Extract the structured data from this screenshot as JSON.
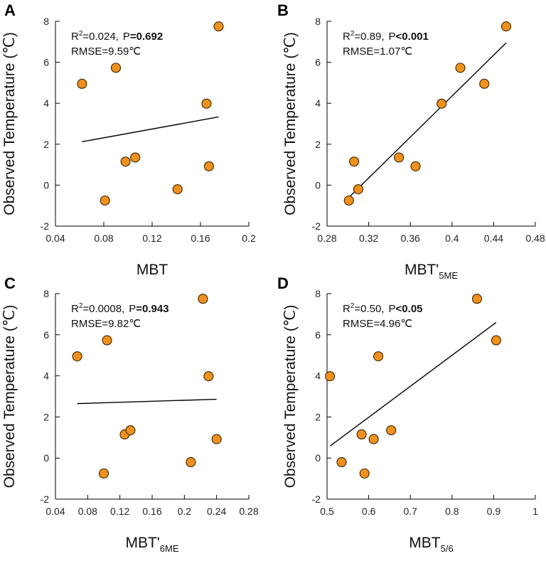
{
  "colors": {
    "marker": "#F0901E",
    "marker_edge": "#3a2600",
    "axis": "#000000",
    "line": "#000000"
  },
  "chart_data": [
    {
      "type": "scatter",
      "panel": "A",
      "ylabel": "Observed Temperature (℃)",
      "xlabel": "MBT",
      "xlabel_sub": "",
      "xlim": [
        0.04,
        0.2
      ],
      "xticks": [
        "0.04",
        "0.08",
        "0.12",
        "0.16",
        "0.2"
      ],
      "ylim": [
        -2,
        8
      ],
      "yticks": [
        "-2",
        "0",
        "2",
        "4",
        "6",
        "8"
      ],
      "stats": {
        "r2_prefix": "R",
        "r2_sup": "2",
        "r2_value": "=0.024,",
        "p_label": "P",
        "p_value": "=0.692",
        "rmse_text": "RMSE=9.59℃"
      },
      "points": [
        {
          "x": 0.062,
          "y": 4.95
        },
        {
          "x": 0.09,
          "y": 5.73
        },
        {
          "x": 0.081,
          "y": -0.75
        },
        {
          "x": 0.098,
          "y": 1.15
        },
        {
          "x": 0.106,
          "y": 1.35
        },
        {
          "x": 0.141,
          "y": -0.2
        },
        {
          "x": 0.165,
          "y": 3.98
        },
        {
          "x": 0.167,
          "y": 0.92
        },
        {
          "x": 0.175,
          "y": 7.75
        }
      ],
      "fit": {
        "x1": 0.062,
        "y1": 2.12,
        "x2": 0.175,
        "y2": 3.33
      }
    },
    {
      "type": "scatter",
      "panel": "B",
      "ylabel": "Observed Temperature (℃)",
      "xlabel": "MBT'",
      "xlabel_sub": "5ME",
      "xlim": [
        0.28,
        0.48
      ],
      "xticks": [
        "0.28",
        "0.32",
        "0.36",
        "0.4",
        "0.44",
        "0.48"
      ],
      "ylim": [
        -2,
        8
      ],
      "yticks": [
        "-2",
        "0",
        "2",
        "4",
        "6",
        "8"
      ],
      "stats": {
        "r2_prefix": "R",
        "r2_sup": "2",
        "r2_value": "=0.89,",
        "p_label": "P",
        "p_value": "<0.001",
        "rmse_text": "RMSE=1.07℃"
      },
      "points": [
        {
          "x": 0.301,
          "y": -0.75
        },
        {
          "x": 0.306,
          "y": 1.15
        },
        {
          "x": 0.31,
          "y": -0.2
        },
        {
          "x": 0.349,
          "y": 1.35
        },
        {
          "x": 0.365,
          "y": 0.92
        },
        {
          "x": 0.39,
          "y": 3.98
        },
        {
          "x": 0.408,
          "y": 5.73
        },
        {
          "x": 0.431,
          "y": 4.95
        },
        {
          "x": 0.452,
          "y": 7.75
        }
      ],
      "fit": {
        "x1": 0.301,
        "y1": -0.6,
        "x2": 0.452,
        "y2": 6.95
      }
    },
    {
      "type": "scatter",
      "panel": "C",
      "ylabel": "Observed Temperature (℃)",
      "xlabel": "MBT'",
      "xlabel_sub": "6ME",
      "xlim": [
        0.04,
        0.28
      ],
      "xticks": [
        "0.04",
        "0.08",
        "0.12",
        "0.16",
        "0.2",
        "0.24",
        "0.28"
      ],
      "ylim": [
        -2,
        8
      ],
      "yticks": [
        "-2",
        "0",
        "2",
        "4",
        "6",
        "8"
      ],
      "stats": {
        "r2_prefix": "R",
        "r2_sup": "2",
        "r2_value": "=0.0008,",
        "p_label": "P",
        "p_value": "=0.943",
        "rmse_text": "RMSE=9.82℃"
      },
      "points": [
        {
          "x": 0.067,
          "y": 4.95
        },
        {
          "x": 0.104,
          "y": 5.73
        },
        {
          "x": 0.1,
          "y": -0.75
        },
        {
          "x": 0.126,
          "y": 1.15
        },
        {
          "x": 0.133,
          "y": 1.35
        },
        {
          "x": 0.208,
          "y": -0.2
        },
        {
          "x": 0.223,
          "y": 7.75
        },
        {
          "x": 0.23,
          "y": 3.98
        },
        {
          "x": 0.24,
          "y": 0.92
        }
      ],
      "fit": {
        "x1": 0.067,
        "y1": 2.65,
        "x2": 0.24,
        "y2": 2.86
      }
    },
    {
      "type": "scatter",
      "panel": "D",
      "ylabel": "Observed Temperature (℃)",
      "xlabel": "MBT",
      "xlabel_sub": "5/6",
      "xlim": [
        0.5,
        1.0
      ],
      "xticks": [
        "0.5",
        "0.6",
        "0.7",
        "0.8",
        "0.9",
        "1"
      ],
      "ylim": [
        -2,
        8
      ],
      "yticks": [
        "-2",
        "0",
        "2",
        "4",
        "6",
        "8"
      ],
      "stats": {
        "r2_prefix": "R",
        "r2_sup": "2",
        "r2_value": "=0.50,",
        "p_label": "P",
        "p_value": "<0.05",
        "rmse_text": "RMSE=4.96℃"
      },
      "points": [
        {
          "x": 0.507,
          "y": 3.98
        },
        {
          "x": 0.535,
          "y": -0.2
        },
        {
          "x": 0.583,
          "y": 1.15
        },
        {
          "x": 0.59,
          "y": -0.75
        },
        {
          "x": 0.612,
          "y": 0.92
        },
        {
          "x": 0.623,
          "y": 4.95
        },
        {
          "x": 0.654,
          "y": 1.35
        },
        {
          "x": 0.86,
          "y": 7.75
        },
        {
          "x": 0.906,
          "y": 5.73
        }
      ],
      "fit": {
        "x1": 0.507,
        "y1": 0.58,
        "x2": 0.906,
        "y2": 6.6
      }
    }
  ]
}
